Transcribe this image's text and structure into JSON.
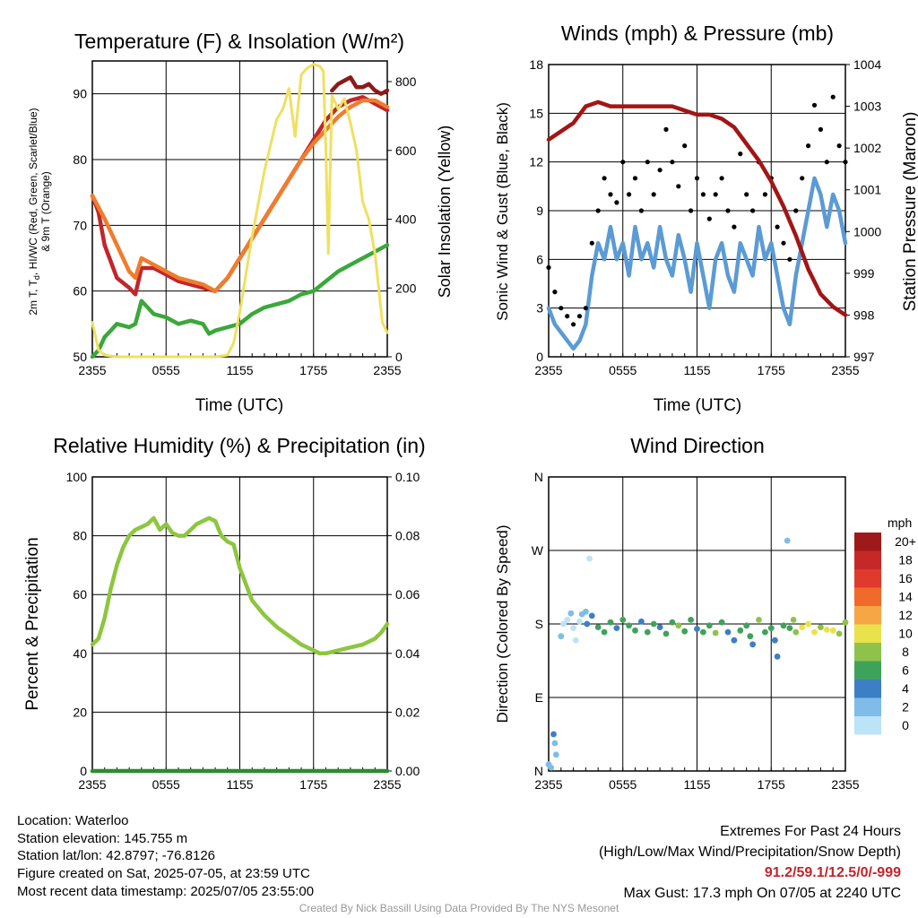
{
  "charts": {
    "temperature": {
      "title": "Temperature (F) & Insolation (W/m²)",
      "x_label": "Time (UTC)",
      "y_left_label_lines": [
        "2m T, T",
        "d",
        ", HI/WC (Red, Green, Scarlet/Blue)",
        "& 9m T (Orange)"
      ],
      "y_right_label": "Solar Insolation (Yellow)"
    },
    "winds": {
      "title": "Winds (mph) & Pressure (mb)",
      "x_label": "Time (UTC)",
      "y_left_label": "Sonic Wind & Gust (Blue, Black)",
      "y_right_label": "Station Pressure (Maroon)"
    },
    "humidity": {
      "title": "Relative Humidity (%) & Precipitation (in)",
      "y_left_label": "Percent & Precipitation"
    },
    "direction": {
      "title": "Wind Direction",
      "y_left_label": "Direction (Colored By Speed)",
      "legend_title": "mph",
      "legend_labels": [
        "20+",
        "18",
        "16",
        "14",
        "12",
        "10",
        "8",
        "6",
        "4",
        "2",
        "0"
      ]
    }
  },
  "chart_data": [
    {
      "type": "line",
      "title": "Temperature (F) & Insolation (W/m²)",
      "xlabel": "Time (UTC)",
      "x_ticks": [
        "2355",
        "0555",
        "1155",
        "1755",
        "2355"
      ],
      "x_range_hours": [
        0,
        24
      ],
      "ylim": [
        50,
        95
      ],
      "y_ticks": [
        50,
        60,
        70,
        80,
        90
      ],
      "y2lim": [
        0,
        860
      ],
      "y2_ticks": [
        0,
        200,
        400,
        600,
        800
      ],
      "grid": true,
      "series": [
        {
          "axis": "left",
          "color": "#c0262b",
          "x": [
            0,
            0.5,
            1,
            2,
            3,
            3.5,
            4,
            5,
            6,
            7,
            8,
            9,
            10,
            11,
            12,
            13,
            14,
            15,
            16,
            17,
            18,
            19,
            20,
            21,
            22,
            23,
            24
          ],
          "values": [
            74.5,
            72,
            67,
            62,
            60.5,
            59.5,
            63.5,
            63.5,
            62.5,
            61.5,
            61,
            60.5,
            60,
            62,
            65,
            68,
            71,
            74,
            77,
            80,
            83,
            86,
            88,
            89,
            89.5,
            88.5,
            87.5
          ]
        },
        {
          "axis": "left",
          "color": "#f07c2c",
          "x": [
            0,
            1,
            2,
            3,
            3.5,
            4,
            5,
            6,
            7,
            8,
            9,
            10,
            11,
            12,
            13,
            14,
            15,
            16,
            17,
            18,
            19,
            20,
            21,
            22,
            23,
            24
          ],
          "values": [
            74.5,
            71,
            67,
            63,
            62,
            65,
            64,
            63,
            62,
            61.5,
            61,
            60,
            62,
            65,
            68,
            71,
            74,
            77,
            80,
            82.5,
            84.5,
            86.5,
            88,
            89,
            89,
            88
          ]
        },
        {
          "axis": "left",
          "color": "#8c1a1a",
          "x": [
            19.5,
            20,
            20.5,
            21,
            21.5,
            22,
            22.5,
            23,
            23.5,
            24
          ],
          "values": [
            90.5,
            91.5,
            92,
            92.5,
            91,
            91,
            91.5,
            90.5,
            90,
            90.5
          ]
        },
        {
          "axis": "left",
          "color": "#3aa83a",
          "x": [
            0,
            0.5,
            1,
            1.5,
            2,
            3,
            3.5,
            4,
            4.5,
            5,
            6,
            7,
            8,
            9,
            9.5,
            10,
            11,
            12,
            13,
            14,
            15,
            16,
            17,
            18,
            19,
            20,
            21,
            22,
            23,
            24
          ],
          "values": [
            50,
            51,
            53,
            54,
            55,
            54.5,
            55,
            58.5,
            57.5,
            56.5,
            56,
            55,
            55.5,
            55,
            53.5,
            54,
            54.5,
            55,
            56.5,
            57.5,
            58,
            58.5,
            59.5,
            60,
            61.5,
            63,
            64,
            65,
            66,
            67
          ]
        },
        {
          "axis": "right",
          "color": "#f0e060",
          "x": [
            0,
            0.5,
            1,
            2,
            3,
            4,
            5,
            6,
            7,
            8,
            9,
            10,
            11,
            11.5,
            12,
            13,
            14,
            15,
            15.5,
            16,
            16.5,
            17,
            17.5,
            18,
            18.5,
            18.8,
            19,
            19.2,
            19.5,
            20,
            20.5,
            21,
            21.5,
            22,
            22.5,
            23,
            23.3,
            23.6,
            24
          ],
          "values": [
            100,
            20,
            5,
            0,
            0,
            0,
            0,
            0,
            0,
            0,
            0,
            0,
            5,
            40,
            130,
            350,
            540,
            690,
            720,
            780,
            640,
            820,
            840,
            850,
            845,
            830,
            600,
            300,
            760,
            720,
            750,
            680,
            600,
            450,
            400,
            300,
            200,
            100,
            70
          ]
        }
      ]
    },
    {
      "type": "line",
      "title": "Winds (mph) & Pressure (mb)",
      "xlabel": "Time (UTC)",
      "ylabel": "Sonic Wind & Gust (Blue, Black)",
      "y2label": "Station Pressure (Maroon)",
      "x_ticks": [
        "2355",
        "0555",
        "1155",
        "1755",
        "2355"
      ],
      "x_range_hours": [
        0,
        24
      ],
      "ylim": [
        0,
        18
      ],
      "y_ticks": [
        0,
        3,
        6,
        9,
        12,
        15,
        18
      ],
      "y2lim": [
        997,
        1004
      ],
      "y2_ticks": [
        997,
        998,
        999,
        1000,
        1001,
        1002,
        1003,
        1004
      ],
      "grid": true,
      "series": [
        {
          "axis": "left",
          "color": "#5b9bd5",
          "x": [
            0,
            0.5,
            1,
            1.5,
            2,
            2.5,
            3,
            3.5,
            4,
            4.5,
            5,
            5.5,
            6,
            6.5,
            7,
            7.5,
            8,
            8.5,
            9,
            9.5,
            10,
            10.5,
            11,
            11.5,
            12,
            12.5,
            13,
            13.5,
            14,
            14.5,
            15,
            15.5,
            16,
            16.5,
            17,
            17.5,
            18,
            18.5,
            19,
            19.5,
            20,
            20.5,
            21,
            21.5,
            22,
            22.5,
            23,
            23.5,
            24
          ],
          "values": [
            3,
            2,
            1.5,
            1,
            0.5,
            1,
            2,
            5,
            7,
            6,
            8,
            6,
            7,
            5,
            8,
            6,
            7,
            5.5,
            8,
            6,
            5,
            7.5,
            6,
            4,
            7,
            5,
            3,
            6,
            7,
            5,
            4,
            7,
            6,
            5,
            8,
            6,
            7,
            5,
            3,
            2,
            5,
            7,
            9,
            11,
            10,
            8,
            10,
            9,
            7
          ]
        },
        {
          "axis": "left",
          "color": "#000000",
          "marker": "dot",
          "x": [
            0,
            0.5,
            1,
            1.5,
            2,
            2.5,
            3,
            3.5,
            4,
            4.5,
            5,
            5.5,
            6,
            6.5,
            7,
            7.5,
            8,
            8.5,
            9,
            9.5,
            10,
            10.5,
            11,
            11.5,
            12,
            12.5,
            13,
            13.5,
            14,
            14.5,
            15,
            15.5,
            16,
            16.5,
            17,
            17.5,
            18,
            18.5,
            19,
            19.5,
            20,
            20.5,
            21,
            21.5,
            22,
            22.5,
            23,
            23.5,
            24
          ],
          "values": [
            5.5,
            4,
            3,
            2.5,
            2,
            2.5,
            3,
            7,
            9,
            11,
            10,
            9.5,
            12,
            10,
            11,
            9,
            12,
            10,
            11.5,
            14,
            12,
            10.5,
            13,
            9,
            11,
            10,
            8.5,
            10,
            11,
            9,
            8,
            12.5,
            10,
            9,
            12,
            10,
            11,
            8,
            7,
            6,
            9,
            11,
            13,
            15.5,
            14,
            12,
            16,
            13,
            12
          ]
        },
        {
          "axis": "right",
          "color": "#a31515",
          "x": [
            0,
            1,
            2,
            3,
            4,
            5,
            6,
            7,
            8,
            9,
            10,
            11,
            12,
            13,
            14,
            15,
            16,
            17,
            18,
            19,
            20,
            21,
            22,
            23,
            24
          ],
          "values": [
            1002.2,
            1002.4,
            1002.6,
            1003,
            1003.1,
            1003,
            1003,
            1003,
            1003,
            1003,
            1003,
            1002.9,
            1002.8,
            1002.8,
            1002.7,
            1002.5,
            1002.1,
            1001.7,
            1001.2,
            1000.6,
            999.9,
            999.1,
            998.5,
            998.2,
            998
          ]
        }
      ]
    },
    {
      "type": "line",
      "title": "Relative Humidity (%) & Precipitation (in)",
      "ylabel": "Percent & Precipitation",
      "x_ticks": [
        "2355",
        "0555",
        "1155",
        "1755",
        "2355"
      ],
      "x_range_hours": [
        0,
        24
      ],
      "ylim": [
        0,
        100
      ],
      "y_ticks": [
        0,
        20,
        40,
        60,
        80,
        100
      ],
      "y2lim": [
        0,
        0.1
      ],
      "y2_ticks": [
        "0.00",
        "0.02",
        "0.04",
        "0.06",
        "0.08",
        "0.10"
      ],
      "grid": true,
      "series": [
        {
          "axis": "left",
          "color": "#8dc63f",
          "x": [
            0,
            0.5,
            1,
            1.5,
            2,
            2.5,
            3,
            3.5,
            4,
            4.5,
            5,
            5.5,
            6,
            6.5,
            7,
            7.5,
            8,
            8.5,
            9,
            9.5,
            10,
            10.5,
            11,
            11.5,
            12,
            13,
            14,
            15,
            16,
            17,
            17.5,
            18,
            18.5,
            19,
            20,
            21,
            22,
            23,
            23.5,
            24
          ],
          "values": [
            43,
            45,
            52,
            62,
            70,
            76,
            80,
            82,
            83,
            84,
            86,
            82,
            84,
            81,
            80,
            80,
            82,
            84,
            85,
            86,
            85,
            80,
            78,
            77,
            69,
            58,
            53,
            49,
            46,
            43,
            42,
            41,
            40,
            40,
            41,
            42,
            43,
            45,
            47,
            50
          ]
        },
        {
          "axis": "right",
          "color": "#2f8a2f",
          "x": [
            0,
            24
          ],
          "values": [
            0,
            0
          ]
        }
      ]
    },
    {
      "type": "scatter",
      "title": "Wind Direction",
      "ylabel": "Direction (Colored By Speed)",
      "x_ticks": [
        "2355",
        "0555",
        "1155",
        "1755",
        "2355"
      ],
      "x_range_hours": [
        0,
        24
      ],
      "y_ticks": [
        "N",
        "E",
        "S",
        "W",
        "N"
      ],
      "y_tick_degrees": [
        0,
        90,
        180,
        270,
        360
      ],
      "grid": true,
      "legend": {
        "title": "mph",
        "position": "right",
        "labels": [
          "20+",
          "18",
          "16",
          "14",
          "12",
          "10",
          "8",
          "6",
          "4",
          "2",
          "0"
        ],
        "colors": [
          "#9e1a1a",
          "#c62828",
          "#e0392e",
          "#f06a2a",
          "#f7a646",
          "#e9e24a",
          "#8fc24a",
          "#3ea35a",
          "#3d7fc4",
          "#7fbce8",
          "#bde3f7"
        ]
      },
      "series": [
        {
          "name": "",
          "x": [
            0,
            0.2,
            0.4,
            0.5,
            0.6,
            1.0,
            1.2,
            1.5,
            1.8,
            2.0,
            2.2,
            2.5,
            2.7,
            3.0,
            3.1,
            3.3,
            3.5,
            4.0,
            4.5,
            5.0,
            5.5,
            6.0,
            6.5,
            7.0,
            7.5,
            8.0,
            8.5,
            9.0,
            9.5,
            10.0,
            10.5,
            11.0,
            11.5,
            12.0,
            12.5,
            13.0,
            13.5,
            14.0,
            14.5,
            15.0,
            15.5,
            16.0,
            16.3,
            16.5,
            17.0,
            17.5,
            18.0,
            18.3,
            18.5,
            19.0,
            19.3,
            19.5,
            19.8,
            20.0,
            20.5,
            21.0,
            21.5,
            22.0,
            22.5,
            23.0,
            23.5,
            24.0
          ],
          "values": [
            8,
            4,
            45,
            34,
            20,
            165,
            180,
            185,
            193,
            175,
            160,
            183,
            192,
            195,
            180,
            260,
            190,
            176,
            170,
            182,
            175,
            185,
            178,
            172,
            183,
            170,
            180,
            176,
            168,
            182,
            178,
            171,
            185,
            174,
            170,
            178,
            169,
            182,
            170,
            160,
            172,
            178,
            165,
            155,
            185,
            170,
            175,
            160,
            140,
            178,
            282,
            175,
            185,
            170,
            176,
            180,
            170,
            176,
            173,
            172,
            168,
            182
          ],
          "speeds": [
            3,
            2,
            4,
            3,
            2,
            2,
            1,
            1,
            2,
            1,
            1,
            1,
            2,
            2,
            4,
            1,
            5,
            6,
            7,
            6,
            5,
            6,
            7,
            6,
            5,
            7,
            6,
            5,
            6,
            7,
            8,
            7,
            6,
            5,
            6,
            7,
            8,
            6,
            5,
            4,
            6,
            7,
            6,
            5,
            8,
            7,
            6,
            5,
            4,
            7,
            2,
            6,
            8,
            9,
            10,
            11,
            10,
            9,
            11,
            10,
            9,
            8
          ]
        }
      ]
    }
  ],
  "info": {
    "location": "Location: Waterloo",
    "elevation": "Station elevation: 145.755 m",
    "latlon": "Station lat/lon: 42.8797; -76.8126",
    "created": "Figure created on Sat, 2025-07-05, at 23:59 UTC",
    "recent": "Most recent data timestamp: 2025/07/05 23:55:00"
  },
  "extremes": {
    "title": "Extremes For Past 24 Hours",
    "subtitle": "(High/Low/Max Wind/Precipitation/Snow Depth)",
    "values": "91.2/59.1/12.5/0/-999",
    "gust": "Max Gust: 17.3 mph On 07/05 at 2240 UTC"
  },
  "credit": "Created By Nick Bassill Using Data Provided By The NYS Mesonet"
}
